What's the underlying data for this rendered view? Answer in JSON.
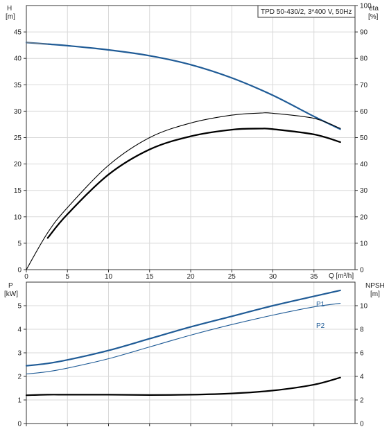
{
  "colors": {
    "head_curve": "#1f5b96",
    "power_curve": "#1f5b96",
    "efficiency_curve": "#000000",
    "npsh_curve": "#000000",
    "grid": "#d9d9d9"
  },
  "chart_data": [
    {
      "type": "line",
      "legend_box": "TPD 50-430/2, 3*400 V, 50Hz",
      "legend_placement": "top-right",
      "grid": true,
      "xlabel": "Q [m³/h]",
      "xlim": [
        0,
        40
      ],
      "x_ticks": [
        "0",
        "5",
        "10",
        "15",
        "20",
        "25",
        "30",
        "35"
      ],
      "y_axes": {
        "left": {
          "label_line1": "H",
          "label_line2": "[m]",
          "lim": [
            0,
            50
          ],
          "ticks": [
            "0",
            "5",
            "10",
            "15",
            "20",
            "25",
            "30",
            "35",
            "40",
            "45"
          ]
        },
        "right": {
          "label_line1": "eta",
          "label_line2": "[%]",
          "lim": [
            0,
            100
          ],
          "ticks": [
            "0",
            "10",
            "20",
            "30",
            "40",
            "50",
            "60",
            "70",
            "80",
            "90",
            "100"
          ]
        }
      },
      "series": [
        {
          "key": "head",
          "axis": "left",
          "x": [
            0,
            2.6,
            5,
            10,
            15,
            20,
            25,
            30,
            35,
            38.2
          ],
          "values": [
            43.0,
            42.7,
            42.4,
            41.6,
            40.5,
            38.8,
            36.3,
            33.0,
            29.0,
            26.6
          ]
        },
        {
          "key": "head_extension",
          "axis": "left",
          "x": [
            0,
            2.6
          ],
          "values": [
            43.0,
            42.7
          ]
        },
        {
          "key": "eta_thick",
          "axis": "right",
          "x": [
            2.6,
            5,
            10,
            15,
            20,
            25,
            28.5,
            30,
            35,
            38.2
          ],
          "values": [
            12,
            21,
            36,
            45.5,
            50.5,
            53,
            53.4,
            53.2,
            51.2,
            48.3
          ]
        },
        {
          "key": "eta_thin",
          "axis": "right",
          "x": [
            0,
            2.6,
            5,
            10,
            15,
            20,
            25,
            28.5,
            30,
            35,
            38.2
          ],
          "values": [
            0,
            14,
            23.5,
            39.5,
            50,
            55.5,
            58.5,
            59.3,
            59.2,
            57.3,
            53.5
          ]
        }
      ]
    },
    {
      "type": "line",
      "grid": true,
      "xlim": [
        0,
        40
      ],
      "y_axes": {
        "left": {
          "label_line1": "P",
          "label_line2": "[kW]",
          "lim": [
            0,
            6
          ],
          "ticks": [
            "0",
            "1",
            "2",
            "3",
            "4",
            "5"
          ]
        },
        "right": {
          "label_line1": "NPSH",
          "label_line2": "[m]",
          "lim": [
            0,
            12
          ],
          "ticks": [
            "0",
            "2",
            "4",
            "6",
            "8",
            "10"
          ]
        }
      },
      "series": [
        {
          "key": "p1",
          "name": "P1",
          "axis": "left",
          "x": [
            0,
            2.6,
            5,
            10,
            15,
            20,
            25,
            30,
            35,
            38.2
          ],
          "values": [
            2.45,
            2.55,
            2.7,
            3.1,
            3.6,
            4.1,
            4.55,
            5.0,
            5.4,
            5.65
          ]
        },
        {
          "key": "p2",
          "name": "P2",
          "axis": "left",
          "x": [
            0,
            2.6,
            5,
            10,
            15,
            20,
            25,
            30,
            35,
            38.2
          ],
          "values": [
            2.1,
            2.2,
            2.35,
            2.75,
            3.25,
            3.75,
            4.2,
            4.6,
            4.95,
            5.1
          ]
        },
        {
          "key": "npsh",
          "axis": "right",
          "x": [
            0,
            2.6,
            5,
            10,
            15,
            20,
            25,
            30,
            35,
            38.2
          ],
          "values": [
            2.4,
            2.45,
            2.45,
            2.45,
            2.42,
            2.45,
            2.55,
            2.8,
            3.3,
            3.9
          ]
        }
      ]
    }
  ]
}
